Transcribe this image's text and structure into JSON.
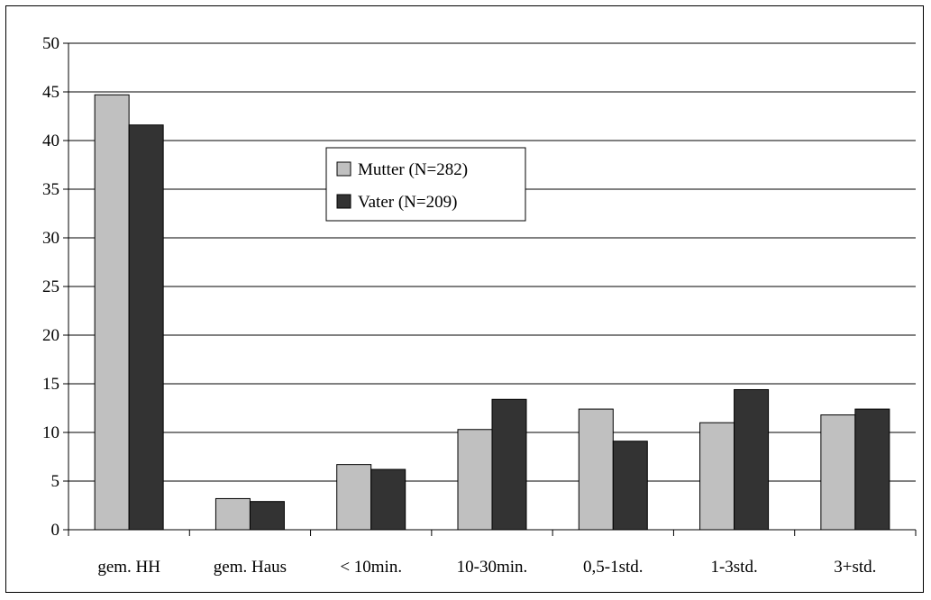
{
  "chart_data": {
    "type": "bar",
    "title": "",
    "xlabel": "",
    "ylabel": "",
    "ylim": [
      0,
      50
    ],
    "yticks": [
      0,
      5,
      10,
      15,
      20,
      25,
      30,
      35,
      40,
      45,
      50
    ],
    "grid": true,
    "legend_position": "upper-center",
    "categories": [
      "gem. HH",
      "gem. Haus",
      "< 10min.",
      "10-30min.",
      "0,5-1std.",
      "1-3std.",
      "3+std."
    ],
    "series": [
      {
        "name": "Mutter (N=282)",
        "color": "#c0c0c0",
        "values": [
          44.7,
          3.2,
          6.7,
          10.3,
          12.4,
          11.0,
          11.8
        ]
      },
      {
        "name": "Vater (N=209)",
        "color": "#333333",
        "values": [
          41.6,
          2.9,
          6.2,
          13.4,
          9.1,
          14.4,
          12.4
        ]
      }
    ]
  }
}
